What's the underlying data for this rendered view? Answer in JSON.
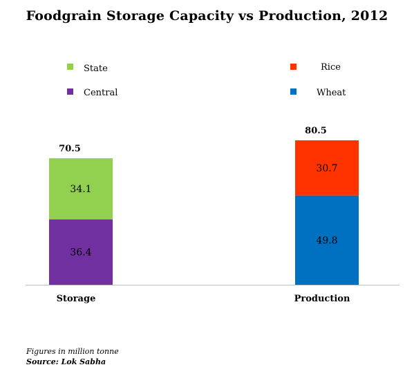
{
  "chart_data": {
    "type": "bar",
    "stacked": true,
    "title": "Foodgrain Storage Capacity vs Production, 2012",
    "categories": [
      "Storage",
      "Production"
    ],
    "totals": [
      70.5,
      80.5
    ],
    "ylim": [
      0,
      80.5
    ],
    "grid": false,
    "series": [
      {
        "name": "Central",
        "category": "Storage",
        "value": 36.4,
        "color": "#7030a0",
        "level": 0
      },
      {
        "name": "State",
        "category": "Storage",
        "value": 34.1,
        "color": "#92d050",
        "level": 1
      },
      {
        "name": "Wheat",
        "category": "Production",
        "value": 49.8,
        "color": "#0070c0",
        "level": 0
      },
      {
        "name": "Rice",
        "category": "Production",
        "value": 30.7,
        "color": "#ff3300",
        "level": 1
      }
    ],
    "legend": [
      {
        "label": "State",
        "color": "#92d050"
      },
      {
        "label": "Central",
        "color": "#7030a0"
      },
      {
        "label": "Rice",
        "color": "#ff3300"
      },
      {
        "label": "Wheat",
        "color": "#0070c0"
      }
    ]
  },
  "footnotes": {
    "units": "Figures in million tonne",
    "source": "Source: Lok Sabha"
  }
}
